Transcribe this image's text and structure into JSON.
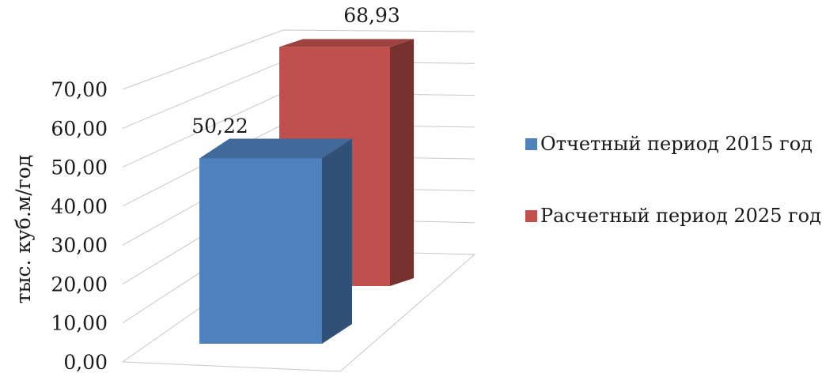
{
  "chart_data": {
    "type": "bar",
    "categories": [
      ""
    ],
    "series": [
      {
        "name": "Отчетный период 2015 год",
        "values": [
          50.22
        ],
        "color": "#4f81bd",
        "value_label": "50,22"
      },
      {
        "name": "Расчетный период 2025 год",
        "values": [
          68.93
        ],
        "color": "#c0504d",
        "value_label": "68,93"
      }
    ],
    "ylabel": "тыс. куб.м/год",
    "ylim": [
      0,
      70
    ],
    "yticks": [
      "0,00",
      "10,00",
      "20,00",
      "30,00",
      "40,00",
      "50,00",
      "60,00",
      "70,00"
    ],
    "grid": true,
    "legend": "right",
    "style": "3d-column"
  }
}
